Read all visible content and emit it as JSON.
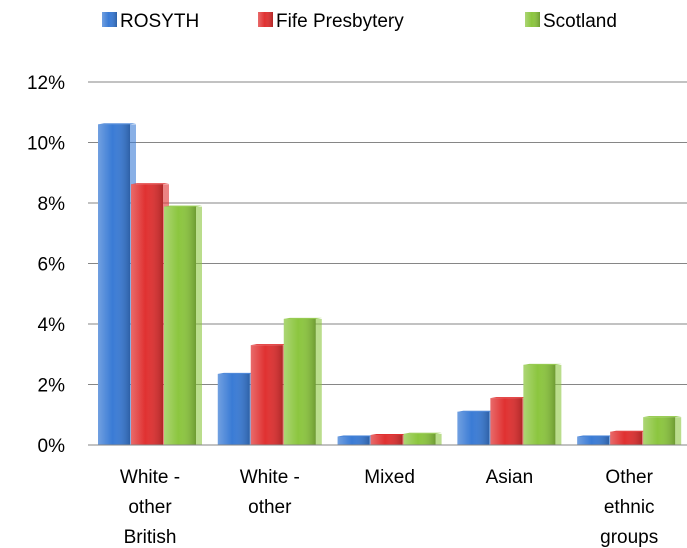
{
  "chart_data": {
    "type": "bar",
    "categories": [
      [
        "White -",
        "other",
        "British"
      ],
      [
        "White -",
        "other"
      ],
      [
        "Mixed"
      ],
      [
        "Asian"
      ],
      [
        "Other",
        "ethnic",
        "groups"
      ]
    ],
    "series": [
      {
        "name": "ROSYTH",
        "color": "#3a7bd5",
        "values": [
          10.6,
          2.35,
          0.28,
          1.1,
          0.28
        ]
      },
      {
        "name": "Fife Presbytery",
        "color": "#e03131",
        "values": [
          8.62,
          3.3,
          0.33,
          1.55,
          0.44
        ]
      },
      {
        "name": "Scotland",
        "color": "#8cc63f",
        "values": [
          7.88,
          4.17,
          0.37,
          2.65,
          0.92
        ]
      }
    ],
    "y_ticks": [
      "0%",
      "2%",
      "4%",
      "6%",
      "8%",
      "10%",
      "12%"
    ],
    "ylim": [
      0,
      12
    ],
    "grid": true,
    "legend": "top"
  }
}
